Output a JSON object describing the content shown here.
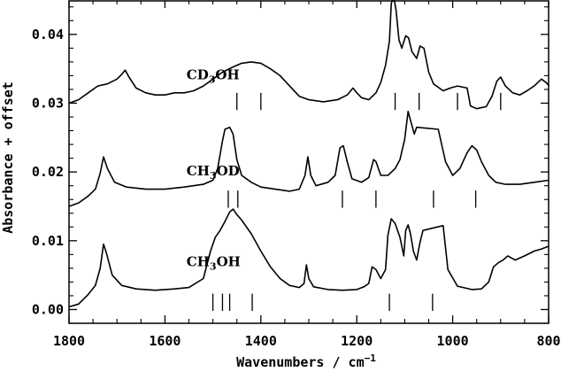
{
  "chart_data": {
    "type": "line",
    "title": "",
    "xlabel": "Wavenumbers / cm",
    "xlabel_sup": "−1",
    "ylabel": "Absorbance + offset",
    "xlim": [
      1800,
      800
    ],
    "ylim": [
      -0.002,
      0.045
    ],
    "x_reversed": true,
    "grid": false,
    "legend": "none",
    "x_ticks": [
      {
        "value": 1800,
        "label": "1800"
      },
      {
        "value": 1600,
        "label": "1600"
      },
      {
        "value": 1400,
        "label": "1400"
      },
      {
        "value": 1200,
        "label": "1200"
      },
      {
        "value": 1000,
        "label": "1000"
      },
      {
        "value": 800,
        "label": "800"
      }
    ],
    "y_ticks": [
      {
        "value": 0.0,
        "label": "0.00"
      },
      {
        "value": 0.01,
        "label": "0.01"
      },
      {
        "value": 0.02,
        "label": "0.02"
      },
      {
        "value": 0.03,
        "label": "0.03"
      },
      {
        "value": 0.04,
        "label": "0.04"
      }
    ],
    "series": [
      {
        "name": "CH3OH",
        "label_main": "CH",
        "label_sub": "3",
        "label_end": "OH",
        "label_x": 1555,
        "label_y": 0.0063,
        "points": [
          [
            1800,
            0.0004
          ],
          [
            1780,
            0.0008
          ],
          [
            1760,
            0.0022
          ],
          [
            1745,
            0.0035
          ],
          [
            1735,
            0.006
          ],
          [
            1728,
            0.0095
          ],
          [
            1722,
            0.0082
          ],
          [
            1710,
            0.005
          ],
          [
            1690,
            0.0035
          ],
          [
            1660,
            0.003
          ],
          [
            1620,
            0.0028
          ],
          [
            1580,
            0.003
          ],
          [
            1550,
            0.0032
          ],
          [
            1520,
            0.0045
          ],
          [
            1505,
            0.0085
          ],
          [
            1495,
            0.0105
          ],
          [
            1485,
            0.0115
          ],
          [
            1475,
            0.0128
          ],
          [
            1465,
            0.0142
          ],
          [
            1458,
            0.0146
          ],
          [
            1450,
            0.0138
          ],
          [
            1440,
            0.013
          ],
          [
            1420,
            0.011
          ],
          [
            1400,
            0.0085
          ],
          [
            1380,
            0.0062
          ],
          [
            1360,
            0.0045
          ],
          [
            1340,
            0.0035
          ],
          [
            1320,
            0.0032
          ],
          [
            1310,
            0.0038
          ],
          [
            1305,
            0.0065
          ],
          [
            1300,
            0.0045
          ],
          [
            1290,
            0.0033
          ],
          [
            1260,
            0.0029
          ],
          [
            1230,
            0.0028
          ],
          [
            1200,
            0.0029
          ],
          [
            1185,
            0.0033
          ],
          [
            1175,
            0.0038
          ],
          [
            1168,
            0.0062
          ],
          [
            1160,
            0.0058
          ],
          [
            1150,
            0.0045
          ],
          [
            1140,
            0.0058
          ],
          [
            1135,
            0.0108
          ],
          [
            1128,
            0.0132
          ],
          [
            1120,
            0.0125
          ],
          [
            1110,
            0.0105
          ],
          [
            1102,
            0.0078
          ],
          [
            1098,
            0.0115
          ],
          [
            1093,
            0.0123
          ],
          [
            1088,
            0.011
          ],
          [
            1082,
            0.0085
          ],
          [
            1075,
            0.0072
          ],
          [
            1068,
            0.0098
          ],
          [
            1062,
            0.0115
          ],
          [
            1020,
            0.0122
          ],
          [
            1010,
            0.0058
          ],
          [
            990,
            0.0034
          ],
          [
            960,
            0.0029
          ],
          [
            940,
            0.003
          ],
          [
            925,
            0.004
          ],
          [
            915,
            0.0062
          ],
          [
            905,
            0.0068
          ],
          [
            895,
            0.0072
          ],
          [
            885,
            0.0078
          ],
          [
            870,
            0.0072
          ],
          [
            850,
            0.0078
          ],
          [
            830,
            0.0085
          ],
          [
            815,
            0.0088
          ],
          [
            800,
            0.0092
          ]
        ]
      },
      {
        "name": "CH3OD",
        "label_main": "CH",
        "label_sub": "3",
        "label_end": "OD",
        "label_x": 1555,
        "label_y": 0.0195,
        "points": [
          [
            1800,
            0.015
          ],
          [
            1780,
            0.0155
          ],
          [
            1760,
            0.0165
          ],
          [
            1745,
            0.0175
          ],
          [
            1735,
            0.0198
          ],
          [
            1728,
            0.0222
          ],
          [
            1720,
            0.0205
          ],
          [
            1705,
            0.0185
          ],
          [
            1680,
            0.0178
          ],
          [
            1640,
            0.0175
          ],
          [
            1600,
            0.0175
          ],
          [
            1560,
            0.0178
          ],
          [
            1520,
            0.0182
          ],
          [
            1500,
            0.0188
          ],
          [
            1490,
            0.0205
          ],
          [
            1480,
            0.0245
          ],
          [
            1475,
            0.0262
          ],
          [
            1465,
            0.0265
          ],
          [
            1458,
            0.0255
          ],
          [
            1450,
            0.0218
          ],
          [
            1440,
            0.0195
          ],
          [
            1420,
            0.0185
          ],
          [
            1400,
            0.0178
          ],
          [
            1370,
            0.0175
          ],
          [
            1340,
            0.0172
          ],
          [
            1320,
            0.0175
          ],
          [
            1308,
            0.0195
          ],
          [
            1302,
            0.0222
          ],
          [
            1296,
            0.0195
          ],
          [
            1285,
            0.018
          ],
          [
            1260,
            0.0185
          ],
          [
            1245,
            0.0195
          ],
          [
            1235,
            0.0235
          ],
          [
            1228,
            0.0238
          ],
          [
            1220,
            0.0215
          ],
          [
            1210,
            0.019
          ],
          [
            1190,
            0.0185
          ],
          [
            1175,
            0.0192
          ],
          [
            1165,
            0.0218
          ],
          [
            1160,
            0.0215
          ],
          [
            1150,
            0.0195
          ],
          [
            1135,
            0.0195
          ],
          [
            1120,
            0.0205
          ],
          [
            1110,
            0.0218
          ],
          [
            1100,
            0.0248
          ],
          [
            1093,
            0.0288
          ],
          [
            1086,
            0.027
          ],
          [
            1080,
            0.0255
          ],
          [
            1075,
            0.0265
          ],
          [
            1030,
            0.0262
          ],
          [
            1015,
            0.0215
          ],
          [
            1000,
            0.0195
          ],
          [
            985,
            0.0205
          ],
          [
            970,
            0.0228
          ],
          [
            960,
            0.0238
          ],
          [
            950,
            0.0232
          ],
          [
            940,
            0.0215
          ],
          [
            925,
            0.0195
          ],
          [
            910,
            0.0185
          ],
          [
            890,
            0.0182
          ],
          [
            860,
            0.0182
          ],
          [
            830,
            0.0185
          ],
          [
            800,
            0.0188
          ]
        ]
      },
      {
        "name": "CD3OH",
        "label_main": "CD",
        "label_sub": "3",
        "label_end": "OH",
        "label_x": 1555,
        "label_y": 0.0335,
        "points": [
          [
            1800,
            0.03
          ],
          [
            1780,
            0.0305
          ],
          [
            1760,
            0.0315
          ],
          [
            1740,
            0.0325
          ],
          [
            1720,
            0.0328
          ],
          [
            1700,
            0.0335
          ],
          [
            1690,
            0.0342
          ],
          [
            1683,
            0.0348
          ],
          [
            1675,
            0.0338
          ],
          [
            1660,
            0.0322
          ],
          [
            1640,
            0.0315
          ],
          [
            1620,
            0.0312
          ],
          [
            1600,
            0.0312
          ],
          [
            1580,
            0.0315
          ],
          [
            1560,
            0.0315
          ],
          [
            1540,
            0.0318
          ],
          [
            1520,
            0.0325
          ],
          [
            1500,
            0.0335
          ],
          [
            1480,
            0.0345
          ],
          [
            1460,
            0.0352
          ],
          [
            1440,
            0.0358
          ],
          [
            1420,
            0.036
          ],
          [
            1400,
            0.0358
          ],
          [
            1380,
            0.035
          ],
          [
            1360,
            0.034
          ],
          [
            1340,
            0.0325
          ],
          [
            1320,
            0.031
          ],
          [
            1300,
            0.0305
          ],
          [
            1270,
            0.0302
          ],
          [
            1240,
            0.0305
          ],
          [
            1220,
            0.0312
          ],
          [
            1208,
            0.0322
          ],
          [
            1200,
            0.0315
          ],
          [
            1190,
            0.0308
          ],
          [
            1175,
            0.0305
          ],
          [
            1160,
            0.0315
          ],
          [
            1150,
            0.033
          ],
          [
            1140,
            0.0355
          ],
          [
            1132,
            0.039
          ],
          [
            1128,
            0.0445
          ],
          [
            1123,
            0.0455
          ],
          [
            1118,
            0.0435
          ],
          [
            1112,
            0.0392
          ],
          [
            1106,
            0.038
          ],
          [
            1098,
            0.0398
          ],
          [
            1092,
            0.0395
          ],
          [
            1085,
            0.0375
          ],
          [
            1075,
            0.0365
          ],
          [
            1068,
            0.0383
          ],
          [
            1060,
            0.038
          ],
          [
            1050,
            0.0345
          ],
          [
            1040,
            0.0328
          ],
          [
            1020,
            0.0318
          ],
          [
            1005,
            0.0322
          ],
          [
            990,
            0.0325
          ],
          [
            970,
            0.0322
          ],
          [
            963,
            0.0296
          ],
          [
            950,
            0.0292
          ],
          [
            930,
            0.0295
          ],
          [
            918,
            0.031
          ],
          [
            908,
            0.0332
          ],
          [
            900,
            0.0338
          ],
          [
            890,
            0.0325
          ],
          [
            875,
            0.0315
          ],
          [
            860,
            0.0312
          ],
          [
            845,
            0.0318
          ],
          [
            830,
            0.0325
          ],
          [
            815,
            0.0335
          ],
          [
            805,
            0.033
          ],
          [
            800,
            0.0326
          ]
        ]
      }
    ],
    "markers": [
      {
        "series": "CH3OH",
        "positions": [
          1500,
          1480,
          1465,
          1418,
          1132,
          1042
        ]
      },
      {
        "series": "CH3OD",
        "positions": [
          1468,
          1448,
          1230,
          1160,
          1040,
          952
        ]
      },
      {
        "series": "CD3OH",
        "positions": [
          1450,
          1400,
          1120,
          1070,
          990,
          900
        ]
      }
    ],
    "marker_bands": [
      {
        "series": "CH3OH",
        "y_top": 0.0023,
        "y_bottom": -0.0002
      },
      {
        "series": "CH3OD",
        "y_top": 0.0173,
        "y_bottom": 0.0148
      },
      {
        "series": "CD3OH",
        "y_top": 0.0315,
        "y_bottom": 0.029
      }
    ]
  }
}
